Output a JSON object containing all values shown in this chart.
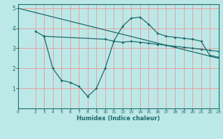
{
  "title": "",
  "xlabel": "Humidex (Indice chaleur)",
  "bg_color": "#bde8e8",
  "line_color": "#1a6b6b",
  "grid_color": "#e8a0a0",
  "xlim": [
    0,
    23
  ],
  "ylim": [
    0,
    5.2
  ],
  "yticks": [
    1,
    2,
    3,
    4,
    5
  ],
  "xticks": [
    0,
    2,
    3,
    4,
    5,
    6,
    7,
    8,
    9,
    10,
    11,
    12,
    13,
    14,
    15,
    16,
    17,
    18,
    19,
    20,
    21,
    22,
    23
  ],
  "line1_x": [
    0,
    23
  ],
  "line1_y": [
    5.0,
    2.5
  ],
  "line2_x": [
    2,
    3,
    10,
    11,
    12,
    13,
    14,
    15,
    16,
    17,
    18,
    19,
    20,
    21,
    22,
    23
  ],
  "line2_y": [
    3.85,
    3.6,
    3.45,
    3.35,
    3.3,
    3.35,
    3.3,
    3.25,
    3.2,
    3.15,
    3.1,
    3.05,
    3.0,
    2.95,
    2.9,
    2.85
  ],
  "line3_x": [
    3,
    4,
    5,
    6,
    7,
    8,
    9,
    10,
    11,
    12,
    13,
    14,
    15,
    16,
    17,
    18,
    19,
    20,
    21,
    22,
    23
  ],
  "line3_y": [
    3.6,
    2.0,
    1.4,
    1.3,
    1.1,
    0.6,
    1.0,
    2.0,
    3.35,
    4.1,
    4.5,
    4.55,
    4.2,
    3.75,
    3.6,
    3.55,
    3.5,
    3.45,
    3.35,
    2.65,
    2.55
  ]
}
